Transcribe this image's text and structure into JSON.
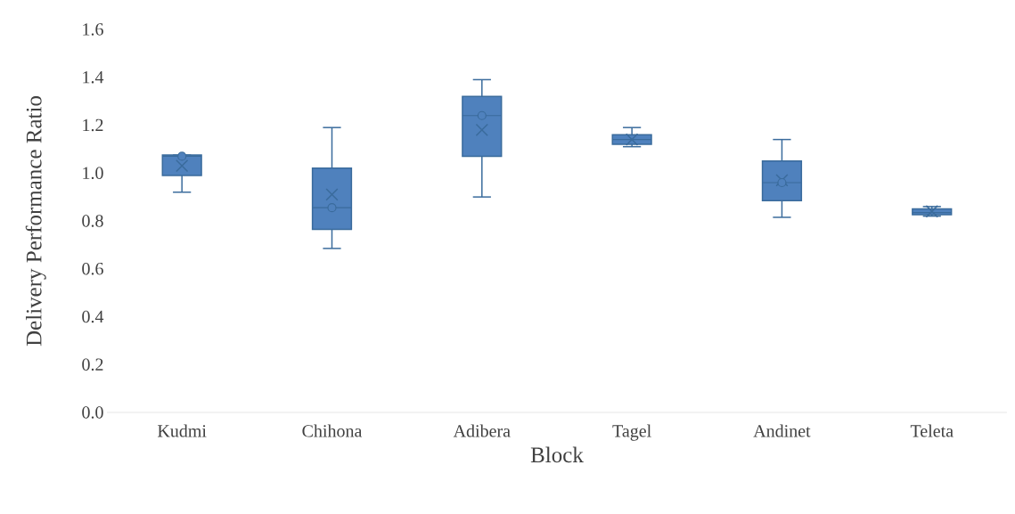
{
  "chart_data": {
    "type": "box",
    "xlabel": "Block",
    "ylabel": "Delivery Performance Ratio",
    "categories": [
      "Kudmi",
      "Chihona",
      "Adibera",
      "Tagel",
      "Andinet",
      "Teleta"
    ],
    "color": "#4f81bd",
    "boxes": [
      {
        "low": 0.92,
        "q1": 0.99,
        "median": 1.07,
        "q3": 1.075,
        "high": 1.075,
        "mean": 1.03
      },
      {
        "low": 0.685,
        "q1": 0.765,
        "median": 0.855,
        "q3": 1.02,
        "high": 1.19,
        "mean": 0.91
      },
      {
        "low": 0.9,
        "q1": 1.07,
        "median": 1.24,
        "q3": 1.32,
        "high": 1.39,
        "mean": 1.18
      },
      {
        "low": 1.11,
        "q1": 1.12,
        "median": 1.14,
        "q3": 1.16,
        "high": 1.19,
        "mean": 1.14
      },
      {
        "low": 0.815,
        "q1": 0.885,
        "median": 0.96,
        "q3": 1.05,
        "high": 1.14,
        "mean": 0.97
      },
      {
        "low": 0.82,
        "q1": 0.826,
        "median": 0.835,
        "q3": 0.85,
        "high": 0.86,
        "mean": 0.84
      }
    ],
    "series": [
      {
        "type": "scatter",
        "marker": "circle",
        "color": "#4f81bd",
        "x": [
          "Kudmi",
          "Chihona",
          "Adibera",
          "Andinet"
        ],
        "values": [
          1.07,
          0.855,
          1.24,
          0.96
        ]
      }
    ],
    "ylim": [
      0,
      1.6
    ],
    "yticks": [
      {
        "value": 0,
        "label": "0.0"
      },
      {
        "value": 0.2,
        "label": "0.2"
      },
      {
        "value": 0.4,
        "label": "0.4"
      },
      {
        "value": 0.6,
        "label": "0.6"
      },
      {
        "value": 0.8,
        "label": "0.8"
      },
      {
        "value": 1.0,
        "label": "1.0"
      },
      {
        "value": 1.2,
        "label": "1.2"
      },
      {
        "value": 1.4,
        "label": "1.4"
      },
      {
        "value": 1.6,
        "label": "1.6"
      }
    ],
    "grid": false
  }
}
